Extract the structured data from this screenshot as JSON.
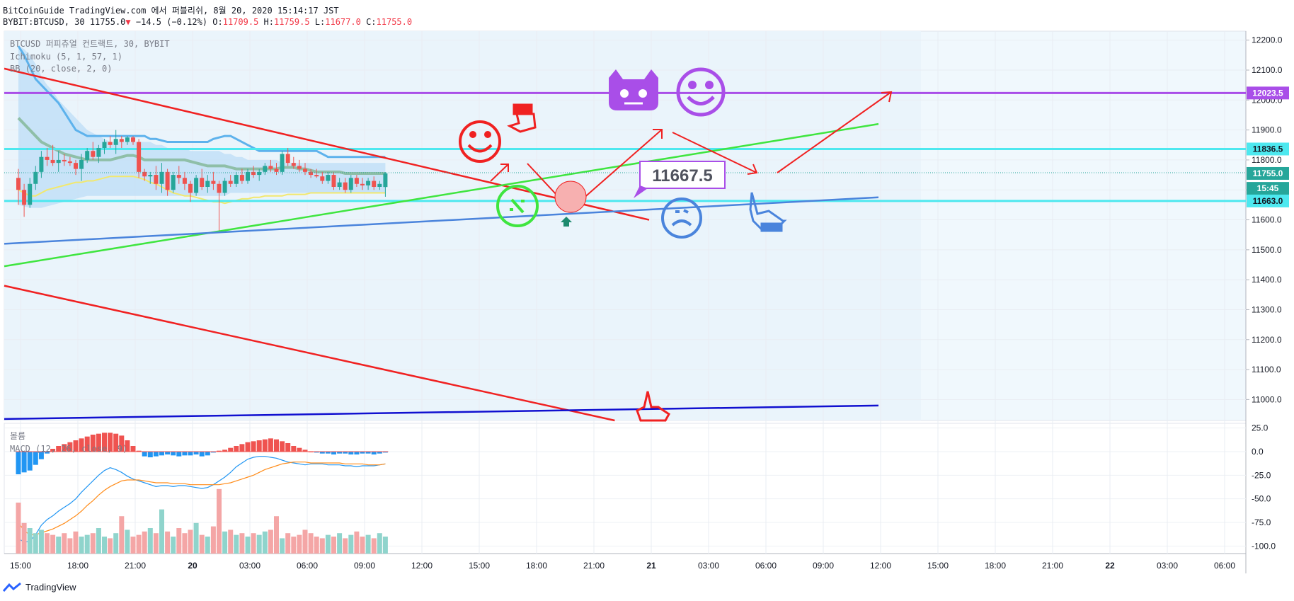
{
  "header": {
    "publish_line": "BitCoinGuide TradingView.com 에서 퍼블리쉬, 8월 20, 2020 15:14:17 JST",
    "symbol": "BYBIT:BTCUSD, 30",
    "last": "11755.0",
    "change_arrow": "▼",
    "change": "−14.5 (−0.12%)",
    "o_label": "O:",
    "o_value": "11709.5",
    "h_label": "H:",
    "h_value": "11759.5",
    "l_label": "L:",
    "l_value": "11677.0",
    "c_label": "C:",
    "c_value": "11755.0"
  },
  "legend": {
    "main": "BTCUSD 퍼피츄얼 컨트랙트, 30, BYBIT",
    "ichimoku": "Ichimoku (5, 1, 57, 1)",
    "bb": "BB (20, close, 2, 0)",
    "volume": "볼륨",
    "macd": "MACD (12, 26, close, 9)"
  },
  "footer": {
    "brand": "TradingView"
  },
  "colors": {
    "up": "#26a69a",
    "down": "#ef5350",
    "cyan": "#4de8ef",
    "purple": "#a94ee8",
    "red": "#f02121",
    "green": "#3fe53f",
    "blue": "#4a84dc",
    "navy": "#1010d0",
    "cloud": "#b9dcf7",
    "bbupper": "#5db2ec",
    "bbbasis": "#8fbfa8",
    "bblower": "#f2e86e",
    "macd": "#2196f3",
    "signal": "#ff8c1a"
  },
  "chart_data": {
    "type": "candlestick",
    "y_range": [
      10930,
      12230
    ],
    "y_ticks": [
      11000,
      11100,
      11200,
      11300,
      11400,
      11500,
      11600,
      11700,
      11800,
      11900,
      12000,
      12100,
      12200
    ],
    "x_ticks": [
      "15:00",
      "18:00",
      "21:00",
      "20",
      "03:00",
      "06:00",
      "09:00",
      "12:00",
      "15:00",
      "18:00",
      "21:00",
      "21",
      "03:00",
      "06:00",
      "09:00",
      "12:00",
      "15:00",
      "18:00",
      "21:00",
      "22",
      "03:00",
      "06:00"
    ],
    "price_labels": [
      {
        "text": "12023.5",
        "value": 12023.5,
        "color": "#a94ee8"
      },
      {
        "text": "11836.5",
        "value": 11836.5,
        "color": "#4de8ef"
      },
      {
        "text": "11755.0",
        "value": 11755.0,
        "color": "#26a69a"
      },
      {
        "text": "15:45",
        "value": 11705,
        "color": "#26a69a"
      },
      {
        "text": "11663.0",
        "value": 11663.0,
        "color": "#4de8ef"
      }
    ],
    "horizontal_lines": [
      {
        "name": "resistance",
        "value": 12023.5,
        "color": "#a94ee8"
      },
      {
        "name": "upper-cyan",
        "value": 11836.5,
        "color": "#4de8ef"
      },
      {
        "name": "lower-cyan",
        "value": 11663.0,
        "color": "#4de8ef"
      }
    ],
    "annotation": "11667.5",
    "candles": [
      {
        "o": 11740,
        "h": 11770,
        "l": 11650,
        "c": 11700
      },
      {
        "o": 11700,
        "h": 11720,
        "l": 11610,
        "c": 11650
      },
      {
        "o": 11650,
        "h": 11740,
        "l": 11640,
        "c": 11720
      },
      {
        "o": 11720,
        "h": 11780,
        "l": 11700,
        "c": 11760
      },
      {
        "o": 11760,
        "h": 11830,
        "l": 11740,
        "c": 11810
      },
      {
        "o": 11810,
        "h": 11840,
        "l": 11780,
        "c": 11800
      },
      {
        "o": 11800,
        "h": 11850,
        "l": 11780,
        "c": 11790
      },
      {
        "o": 11790,
        "h": 11830,
        "l": 11760,
        "c": 11800
      },
      {
        "o": 11800,
        "h": 11820,
        "l": 11780,
        "c": 11795
      },
      {
        "o": 11795,
        "h": 11810,
        "l": 11780,
        "c": 11790
      },
      {
        "o": 11790,
        "h": 11800,
        "l": 11750,
        "c": 11770
      },
      {
        "o": 11770,
        "h": 11820,
        "l": 11730,
        "c": 11800
      },
      {
        "o": 11800,
        "h": 11840,
        "l": 11790,
        "c": 11830
      },
      {
        "o": 11830,
        "h": 11860,
        "l": 11800,
        "c": 11810
      },
      {
        "o": 11810,
        "h": 11850,
        "l": 11790,
        "c": 11840
      },
      {
        "o": 11840,
        "h": 11870,
        "l": 11820,
        "c": 11860
      },
      {
        "o": 11860,
        "h": 11880,
        "l": 11840,
        "c": 11850
      },
      {
        "o": 11850,
        "h": 11900,
        "l": 11820,
        "c": 11870
      },
      {
        "o": 11870,
        "h": 11880,
        "l": 11840,
        "c": 11860
      },
      {
        "o": 11860,
        "h": 11880,
        "l": 11850,
        "c": 11875
      },
      {
        "o": 11875,
        "h": 11880,
        "l": 11850,
        "c": 11860
      },
      {
        "o": 11860,
        "h": 11870,
        "l": 11740,
        "c": 11760
      },
      {
        "o": 11760,
        "h": 11770,
        "l": 11730,
        "c": 11745
      },
      {
        "o": 11745,
        "h": 11760,
        "l": 11720,
        "c": 11750
      },
      {
        "o": 11750,
        "h": 11780,
        "l": 11700,
        "c": 11720
      },
      {
        "o": 11720,
        "h": 11790,
        "l": 11690,
        "c": 11760
      },
      {
        "o": 11760,
        "h": 11770,
        "l": 11680,
        "c": 11700
      },
      {
        "o": 11700,
        "h": 11760,
        "l": 11690,
        "c": 11750
      },
      {
        "o": 11750,
        "h": 11780,
        "l": 11720,
        "c": 11740
      },
      {
        "o": 11740,
        "h": 11760,
        "l": 11700,
        "c": 11720
      },
      {
        "o": 11720,
        "h": 11730,
        "l": 11660,
        "c": 11690
      },
      {
        "o": 11690,
        "h": 11750,
        "l": 11680,
        "c": 11740
      },
      {
        "o": 11740,
        "h": 11770,
        "l": 11700,
        "c": 11710
      },
      {
        "o": 11710,
        "h": 11750,
        "l": 11690,
        "c": 11730
      },
      {
        "o": 11730,
        "h": 11760,
        "l": 11700,
        "c": 11720
      },
      {
        "o": 11720,
        "h": 11730,
        "l": 11560,
        "c": 11690
      },
      {
        "o": 11690,
        "h": 11740,
        "l": 11680,
        "c": 11730
      },
      {
        "o": 11730,
        "h": 11750,
        "l": 11710,
        "c": 11720
      },
      {
        "o": 11720,
        "h": 11760,
        "l": 11710,
        "c": 11750
      },
      {
        "o": 11750,
        "h": 11770,
        "l": 11720,
        "c": 11730
      },
      {
        "o": 11730,
        "h": 11770,
        "l": 11720,
        "c": 11760
      },
      {
        "o": 11760,
        "h": 11780,
        "l": 11740,
        "c": 11750
      },
      {
        "o": 11750,
        "h": 11770,
        "l": 11730,
        "c": 11760
      },
      {
        "o": 11760,
        "h": 11790,
        "l": 11750,
        "c": 11780
      },
      {
        "o": 11780,
        "h": 11800,
        "l": 11760,
        "c": 11770
      },
      {
        "o": 11770,
        "h": 11790,
        "l": 11750,
        "c": 11760
      },
      {
        "o": 11760,
        "h": 11830,
        "l": 11750,
        "c": 11820
      },
      {
        "o": 11820,
        "h": 11840,
        "l": 11780,
        "c": 11790
      },
      {
        "o": 11790,
        "h": 11810,
        "l": 11770,
        "c": 11780
      },
      {
        "o": 11780,
        "h": 11800,
        "l": 11760,
        "c": 11770
      },
      {
        "o": 11770,
        "h": 11790,
        "l": 11750,
        "c": 11760
      },
      {
        "o": 11760,
        "h": 11770,
        "l": 11740,
        "c": 11750
      },
      {
        "o": 11750,
        "h": 11770,
        "l": 11740,
        "c": 11745
      },
      {
        "o": 11745,
        "h": 11760,
        "l": 11720,
        "c": 11730
      },
      {
        "o": 11730,
        "h": 11760,
        "l": 11720,
        "c": 11750
      },
      {
        "o": 11750,
        "h": 11760,
        "l": 11700,
        "c": 11710
      },
      {
        "o": 11710,
        "h": 11740,
        "l": 11700,
        "c": 11725
      },
      {
        "o": 11725,
        "h": 11740,
        "l": 11690,
        "c": 11700
      },
      {
        "o": 11700,
        "h": 11750,
        "l": 11690,
        "c": 11740
      },
      {
        "o": 11740,
        "h": 11750,
        "l": 11710,
        "c": 11720
      },
      {
        "o": 11720,
        "h": 11740,
        "l": 11700,
        "c": 11715
      },
      {
        "o": 11715,
        "h": 11740,
        "l": 11700,
        "c": 11730
      },
      {
        "o": 11730,
        "h": 11745,
        "l": 11700,
        "c": 11710
      },
      {
        "o": 11710,
        "h": 11730,
        "l": 11700,
        "c": 11720
      },
      {
        "o": 11709.5,
        "h": 11759.5,
        "l": 11677,
        "c": 11755
      }
    ],
    "trendlines": [
      {
        "name": "red-upper",
        "color": "#f02121",
        "from": [
          0,
          12105
        ],
        "to": [
          110,
          11600
        ]
      },
      {
        "name": "red-lower",
        "color": "#f02121",
        "from": [
          0,
          11380
        ],
        "to": [
          104,
          10930
        ]
      },
      {
        "name": "green",
        "color": "#3fe53f",
        "from": [
          0,
          11445
        ],
        "to": [
          150,
          11920
        ]
      },
      {
        "name": "blue",
        "color": "#4a84dc",
        "from": [
          0,
          11520
        ],
        "to": [
          150,
          11675
        ]
      },
      {
        "name": "navy",
        "color": "#1010d0",
        "from": [
          0,
          10935
        ],
        "to": [
          150,
          10980
        ]
      }
    ],
    "ichimoku": {
      "upper": [
        12180,
        12170,
        12150,
        12120,
        12080,
        12050,
        12030,
        12000,
        11980,
        11960,
        11940,
        11920,
        11900,
        11890,
        11880,
        11870,
        11860,
        11860,
        11860,
        11860,
        11860,
        11860,
        11860,
        11860,
        11850,
        11850,
        11840,
        11840,
        11840,
        11840,
        11830,
        11830,
        11830,
        11830,
        11830,
        11830,
        11820,
        11820,
        11810,
        11810,
        11800,
        11800,
        11800,
        11800,
        11800,
        11800,
        11790,
        11790,
        11790,
        11790,
        11790,
        11790,
        11790,
        11790,
        11790,
        11790,
        11790,
        11790,
        11790,
        11790,
        11790,
        11790,
        11790,
        11790,
        11790
      ],
      "lower": [
        11650,
        11645,
        11640,
        11640,
        11640,
        11645,
        11650,
        11655,
        11660,
        11665,
        11670,
        11675,
        11680,
        11680,
        11680,
        11680,
        11680,
        11680,
        11680,
        11680,
        11680,
        11680,
        11680,
        11680,
        11680,
        11680,
        11680,
        11680,
        11680,
        11680,
        11680,
        11680,
        11680,
        11680,
        11680,
        11680,
        11680,
        11690,
        11690,
        11690,
        11690,
        11690,
        11690,
        11690,
        11690,
        11690,
        11690,
        11690,
        11690,
        11690,
        11690,
        11690,
        11690,
        11690,
        11690,
        11690,
        11690,
        11690,
        11690,
        11690,
        11690,
        11690,
        11690,
        11690,
        11690
      ]
    },
    "bb": {
      "upper": [
        12180,
        12150,
        12110,
        12070,
        12050,
        12030,
        12010,
        11990,
        11960,
        11930,
        11900,
        11890,
        11880,
        11880,
        11880,
        11880,
        11880,
        11880,
        11880,
        11880,
        11880,
        11880,
        11880,
        11870,
        11870,
        11865,
        11860,
        11860,
        11860,
        11860,
        11860,
        11860,
        11860,
        11860,
        11870,
        11875,
        11880,
        11880,
        11870,
        11860,
        11850,
        11840,
        11830,
        11830,
        11830,
        11830,
        11830,
        11830,
        11830,
        11830,
        11830,
        11830,
        11830,
        11820,
        11810,
        11810,
        11810,
        11810,
        11810,
        11810,
        11810,
        11810,
        11810,
        11810,
        11810
      ],
      "basis": [
        11940,
        11920,
        11900,
        11880,
        11860,
        11850,
        11840,
        11830,
        11820,
        11815,
        11810,
        11805,
        11800,
        11800,
        11800,
        11800,
        11800,
        11805,
        11810,
        11815,
        11815,
        11810,
        11800,
        11800,
        11800,
        11800,
        11800,
        11800,
        11800,
        11800,
        11795,
        11790,
        11785,
        11780,
        11780,
        11780,
        11780,
        11775,
        11770,
        11770,
        11770,
        11770,
        11770,
        11770,
        11770,
        11770,
        11775,
        11775,
        11775,
        11770,
        11770,
        11765,
        11760,
        11760,
        11760,
        11760,
        11760,
        11755,
        11755,
        11755,
        11755,
        11755,
        11755,
        11755,
        11755
      ],
      "lower": [
        11700,
        11690,
        11680,
        11680,
        11690,
        11700,
        11705,
        11710,
        11715,
        11720,
        11725,
        11725,
        11730,
        11730,
        11735,
        11740,
        11745,
        11745,
        11745,
        11745,
        11745,
        11740,
        11735,
        11725,
        11720,
        11710,
        11700,
        11690,
        11685,
        11680,
        11680,
        11675,
        11670,
        11665,
        11660,
        11660,
        11655,
        11660,
        11665,
        11670,
        11670,
        11675,
        11675,
        11680,
        11680,
        11680,
        11680,
        11685,
        11685,
        11685,
        11685,
        11690,
        11690,
        11690,
        11690,
        11690,
        11690,
        11690,
        11690,
        11690,
        11690,
        11690,
        11690,
        11690,
        11690
      ]
    },
    "macd_pane": {
      "y_range": [
        -108,
        30
      ],
      "y_ticks": [
        25.0,
        0.0,
        -25.0,
        -50.0,
        -75.0,
        -100.0
      ],
      "hist": [
        -24,
        -22,
        -20,
        -14,
        -8,
        -2,
        3,
        6,
        8,
        10,
        12,
        14,
        16,
        18,
        19,
        20,
        20,
        19,
        17,
        12,
        6,
        1,
        -5,
        -6,
        -5,
        -4,
        -3,
        -4,
        -5,
        -4,
        -4,
        -3,
        -5,
        -4,
        -1,
        1,
        2,
        4,
        6,
        8,
        10,
        11,
        12,
        13,
        14,
        13,
        11,
        9,
        6,
        4,
        2,
        0,
        -1,
        -2,
        -2,
        -3,
        -2,
        -2,
        -3,
        -3,
        -2,
        -2,
        -3,
        -2,
        -1
      ],
      "macd": [
        -92,
        -96,
        -95,
        -88,
        -78,
        -72,
        -68,
        -63,
        -59,
        -55,
        -50,
        -43,
        -37,
        -31,
        -25,
        -20,
        -17,
        -19,
        -22,
        -26,
        -29,
        -31,
        -33,
        -35,
        -37,
        -36,
        -36,
        -37,
        -36,
        -36,
        -37,
        -38,
        -39,
        -38,
        -35,
        -31,
        -27,
        -22,
        -16,
        -12,
        -8,
        -6,
        -5,
        -5,
        -6,
        -7,
        -9,
        -11,
        -12,
        -13,
        -14,
        -13,
        -13,
        -13,
        -14,
        -14,
        -14,
        -15,
        -15,
        -16,
        -15,
        -15,
        -15,
        -14,
        -13
      ],
      "signal": [
        -75,
        -84,
        -88,
        -88,
        -86,
        -84,
        -82,
        -79,
        -76,
        -72,
        -68,
        -63,
        -57,
        -52,
        -46,
        -41,
        -37,
        -34,
        -31,
        -30,
        -30,
        -30,
        -31,
        -32,
        -33,
        -33,
        -33,
        -34,
        -34,
        -34,
        -35,
        -35,
        -35,
        -35,
        -35,
        -35,
        -34,
        -33,
        -31,
        -29,
        -27,
        -25,
        -22,
        -19,
        -17,
        -15,
        -13,
        -12,
        -11,
        -11,
        -11,
        -12,
        -12,
        -12,
        -12,
        -12,
        -12,
        -13,
        -13,
        -13,
        -13,
        -14,
        -14,
        -14,
        -13
      ]
    },
    "volume": [
      30,
      18,
      15,
      12,
      14,
      12,
      11,
      10,
      12,
      9,
      13,
      10,
      11,
      12,
      15,
      10,
      9,
      12,
      22,
      14,
      10,
      11,
      13,
      15,
      12,
      26,
      13,
      10,
      15,
      12,
      14,
      18,
      11,
      10,
      16,
      38,
      13,
      14,
      11,
      12,
      10,
      12,
      11,
      13,
      14,
      22,
      9,
      12,
      10,
      11,
      14,
      12,
      10,
      9,
      11,
      10,
      12,
      9,
      11,
      13,
      10,
      11,
      9,
      12,
      10
    ]
  }
}
